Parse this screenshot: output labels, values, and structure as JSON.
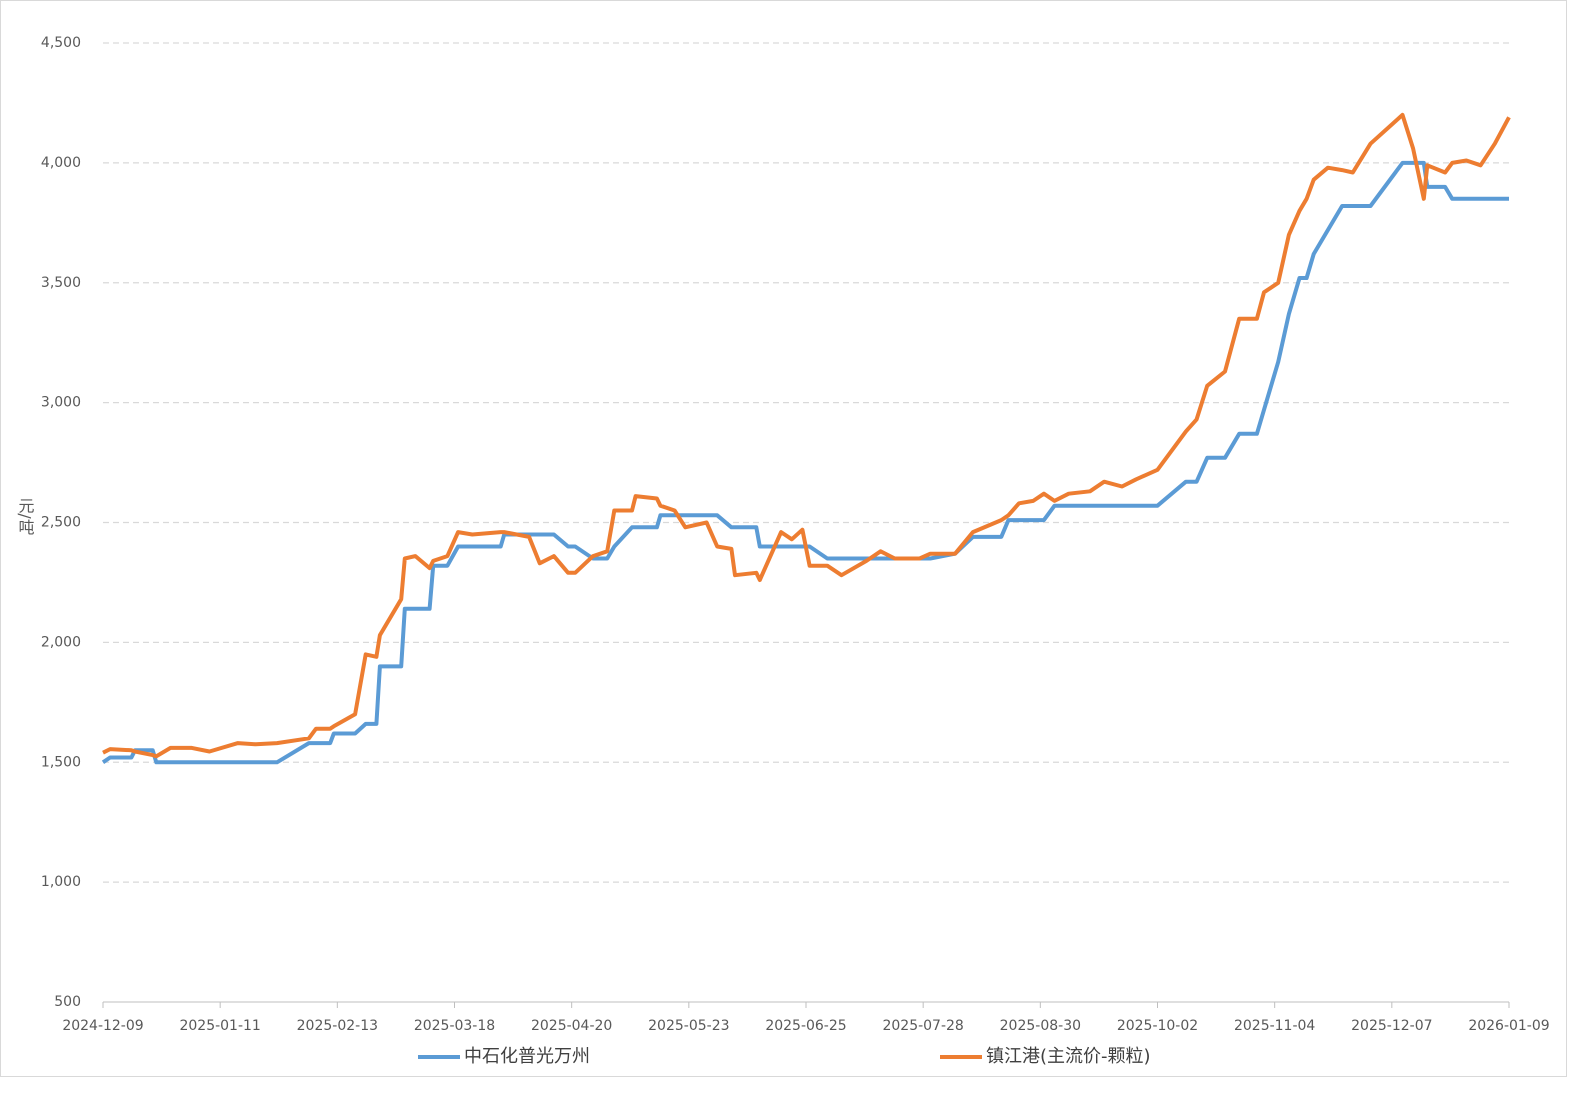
{
  "chart_data": {
    "type": "line",
    "y_label": "元/吨",
    "x": [
      "2024-12-09",
      "2024-12-11",
      "2024-12-17",
      "2024-12-18",
      "2024-12-23",
      "2024-12-24",
      "2024-12-28",
      "2025-01-03",
      "2025-01-08",
      "2025-01-16",
      "2025-01-21",
      "2025-01-27",
      "2025-02-05",
      "2025-02-07",
      "2025-02-11",
      "2025-02-12",
      "2025-02-18",
      "2025-02-21",
      "2025-02-24",
      "2025-02-25",
      "2025-03-03",
      "2025-03-04",
      "2025-03-07",
      "2025-03-11",
      "2025-03-12",
      "2025-03-16",
      "2025-03-19",
      "2025-03-23",
      "2025-03-31",
      "2025-04-01",
      "2025-04-08",
      "2025-04-11",
      "2025-04-15",
      "2025-04-19",
      "2025-04-21",
      "2025-04-26",
      "2025-04-30",
      "2025-05-02",
      "2025-05-07",
      "2025-05-08",
      "2025-05-14",
      "2025-05-15",
      "2025-05-19",
      "2025-05-22",
      "2025-05-28",
      "2025-05-31",
      "2025-06-04",
      "2025-06-05",
      "2025-06-11",
      "2025-06-12",
      "2025-06-18",
      "2025-06-21",
      "2025-06-24",
      "2025-06-26",
      "2025-07-01",
      "2025-07-05",
      "2025-07-12",
      "2025-07-16",
      "2025-07-20",
      "2025-07-27",
      "2025-07-30",
      "2025-08-06",
      "2025-08-11",
      "2025-08-19",
      "2025-08-21",
      "2025-08-24",
      "2025-08-28",
      "2025-08-31",
      "2025-09-03",
      "2025-09-07",
      "2025-09-13",
      "2025-09-17",
      "2025-09-22",
      "2025-09-26",
      "2025-10-02",
      "2025-10-10",
      "2025-10-13",
      "2025-10-16",
      "2025-10-21",
      "2025-10-25",
      "2025-10-30",
      "2025-11-01",
      "2025-11-05",
      "2025-11-08",
      "2025-11-11",
      "2025-11-13",
      "2025-11-15",
      "2025-11-19",
      "2025-11-23",
      "2025-11-26",
      "2025-12-01",
      "2025-12-10",
      "2025-12-13",
      "2025-12-16",
      "2025-12-17",
      "2025-12-22",
      "2025-12-24",
      "2025-12-28",
      "2026-01-01",
      "2026-01-05",
      "2026-01-09"
    ],
    "series": [
      {
        "name": "中石化普光万州",
        "color": "#5b9bd5",
        "values": [
          1500,
          1520,
          1520,
          1550,
          1550,
          1500,
          1500,
          1500,
          1500,
          1500,
          1500,
          1500,
          1580,
          1580,
          1580,
          1620,
          1620,
          1660,
          1660,
          1900,
          1900,
          2140,
          2140,
          2140,
          2320,
          2320,
          2400,
          2400,
          2400,
          2450,
          2450,
          2450,
          2450,
          2400,
          2400,
          2350,
          2350,
          2400,
          2480,
          2480,
          2480,
          2530,
          2530,
          2530,
          2530,
          2530,
          2480,
          2480,
          2480,
          2400,
          2400,
          2400,
          2400,
          2400,
          2350,
          2350,
          2350,
          2350,
          2350,
          2350,
          2350,
          2370,
          2440,
          2440,
          2510,
          2510,
          2510,
          2510,
          2570,
          2570,
          2570,
          2570,
          2570,
          2570,
          2570,
          2670,
          2670,
          2770,
          2770,
          2870,
          2870,
          2970,
          3170,
          3370,
          3520,
          3520,
          3620,
          3720,
          3820,
          3820,
          3820,
          4000,
          4000,
          4000,
          3900,
          3900,
          3850,
          3850,
          3850,
          3850,
          3850
        ]
      },
      {
        "name": "镇江港(主流价-颗粒)",
        "color": "#ed7d31",
        "values": [
          1540,
          1555,
          1550,
          1545,
          1530,
          1525,
          1560,
          1560,
          1545,
          1580,
          1575,
          1580,
          1600,
          1640,
          1640,
          1650,
          1700,
          1950,
          1940,
          2030,
          2180,
          2350,
          2360,
          2310,
          2340,
          2360,
          2460,
          2450,
          2460,
          2460,
          2440,
          2330,
          2360,
          2290,
          2290,
          2360,
          2380,
          2550,
          2550,
          2610,
          2600,
          2570,
          2550,
          2480,
          2500,
          2400,
          2390,
          2280,
          2290,
          2260,
          2460,
          2430,
          2470,
          2320,
          2320,
          2280,
          2340,
          2380,
          2350,
          2350,
          2370,
          2370,
          2460,
          2510,
          2530,
          2580,
          2590,
          2620,
          2590,
          2620,
          2630,
          2670,
          2650,
          2680,
          2720,
          2880,
          2930,
          3070,
          3130,
          3350,
          3350,
          3460,
          3500,
          3700,
          3800,
          3850,
          3930,
          3980,
          3970,
          3960,
          4080,
          4200,
          4060,
          3850,
          3990,
          3960,
          4000,
          4010,
          3990,
          4080,
          4190
        ]
      }
    ],
    "xlim": [
      "2024-12-09",
      "2026-01-09"
    ],
    "xticks": [
      "2024-12-09",
      "2025-01-11",
      "2025-02-13",
      "2025-03-18",
      "2025-04-20",
      "2025-05-23",
      "2025-06-25",
      "2025-07-28",
      "2025-08-30",
      "2025-10-02",
      "2025-11-04",
      "2025-12-07",
      "2026-01-09"
    ],
    "ylim": [
      500,
      4500
    ],
    "yticks": [
      500,
      {
        "value": 1000,
        "label": "1,000"
      },
      {
        "value": 1500,
        "label": "1,500"
      },
      {
        "value": 2000,
        "label": "2,000"
      },
      {
        "value": 2500,
        "label": "2,500"
      },
      {
        "value": 3000,
        "label": "3,000"
      },
      {
        "value": 3500,
        "label": "3,500"
      },
      {
        "value": 4000,
        "label": "4,000"
      },
      {
        "value": 4500,
        "label": "4,500"
      }
    ],
    "grid": true,
    "legend": "bottom"
  }
}
